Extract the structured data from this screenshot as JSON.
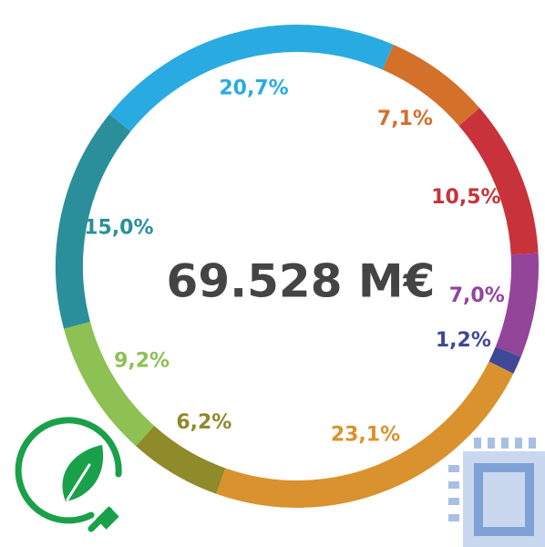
{
  "chart_data": {
    "type": "donut",
    "center_label": "69.528 M€",
    "values": [
      20.7,
      7.1,
      10.5,
      7.0,
      1.2,
      23.1,
      6.2,
      9.2,
      15.0
    ],
    "value_labels": [
      "20,7%",
      "7,1%",
      "10,5%",
      "7,0%",
      "1,2%",
      "23,1%",
      "6,2%",
      "9,2%",
      "15,0%"
    ],
    "colors": [
      "#29abe2",
      "#d3702a",
      "#c8323a",
      "#93459a",
      "#3f4896",
      "#d9922e",
      "#8f8a2a",
      "#8dc153",
      "#2a8f9a"
    ]
  }
}
